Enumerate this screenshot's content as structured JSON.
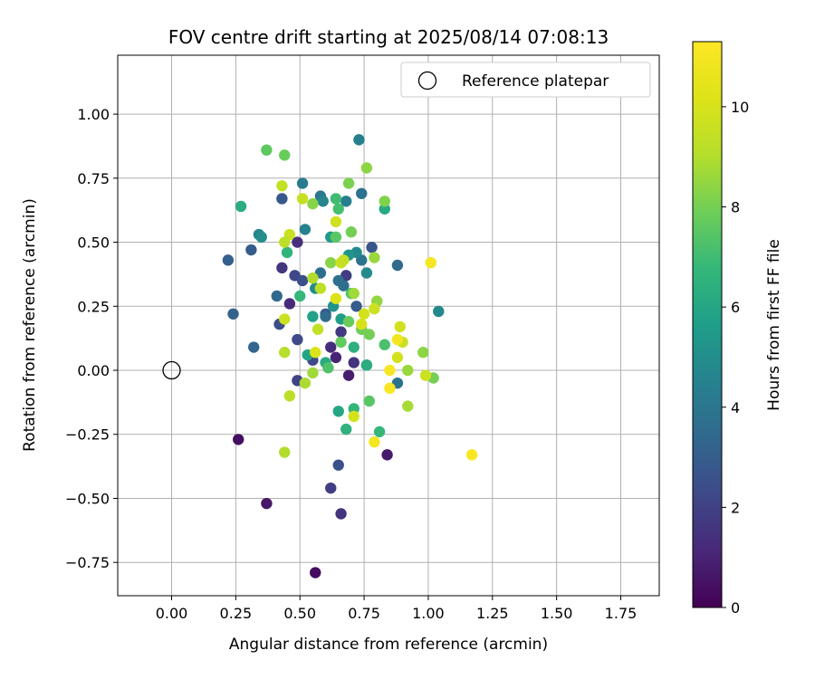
{
  "chart_data": {
    "type": "scatter",
    "title": "FOV centre drift starting at 2025/08/14 07:08:13",
    "xlabel": "Angular distance from reference (arcmin)",
    "ylabel": "Rotation from reference (arcmin)",
    "xlim": [
      -0.21,
      1.9
    ],
    "ylim": [
      -0.88,
      1.23
    ],
    "x_ticks": [
      "0.00",
      "0.25",
      "0.50",
      "0.75",
      "1.00",
      "1.25",
      "1.50",
      "1.75"
    ],
    "y_ticks": [
      "1.00",
      "0.75",
      "0.50",
      "0.25",
      "0.00",
      "−0.25",
      "−0.50",
      "−0.75"
    ],
    "grid": true,
    "legend": {
      "position": "top-right",
      "label": "Reference platepar"
    },
    "reference_point": {
      "x": 0.0,
      "y": 0.0
    },
    "colorbar": {
      "label": "Hours from first FF file",
      "range": [
        0,
        11.3
      ],
      "ticks": [
        "0",
        "2",
        "4",
        "6",
        "8",
        "10"
      ],
      "colormap": "viridis"
    },
    "points": [
      {
        "x": 0.56,
        "y": -0.79,
        "h": 0.3
      },
      {
        "x": 0.37,
        "y": -0.52,
        "h": 0.6
      },
      {
        "x": 0.26,
        "y": -0.27,
        "h": 0.4
      },
      {
        "x": 0.84,
        "y": -0.33,
        "h": 0.7
      },
      {
        "x": 0.69,
        "y": -0.02,
        "h": 0.8
      },
      {
        "x": 0.66,
        "y": -0.56,
        "h": 1.5
      },
      {
        "x": 0.62,
        "y": -0.46,
        "h": 1.9
      },
      {
        "x": 0.65,
        "y": -0.37,
        "h": 2.6
      },
      {
        "x": 0.49,
        "y": 0.5,
        "h": 1.4
      },
      {
        "x": 0.43,
        "y": 0.4,
        "h": 1.6
      },
      {
        "x": 0.46,
        "y": 0.26,
        "h": 1.2
      },
      {
        "x": 0.62,
        "y": 0.09,
        "h": 1.3
      },
      {
        "x": 0.64,
        "y": 0.05,
        "h": 1.0
      },
      {
        "x": 0.68,
        "y": 0.37,
        "h": 1.8
      },
      {
        "x": 0.71,
        "y": 0.03,
        "h": 1.5
      },
      {
        "x": 0.66,
        "y": 0.15,
        "h": 1.7
      },
      {
        "x": 0.49,
        "y": -0.04,
        "h": 2.1
      },
      {
        "x": 0.48,
        "y": 0.37,
        "h": 2.2
      },
      {
        "x": 0.51,
        "y": 0.35,
        "h": 2.5
      },
      {
        "x": 0.42,
        "y": 0.18,
        "h": 2.4
      },
      {
        "x": 0.49,
        "y": 0.12,
        "h": 2.3
      },
      {
        "x": 0.55,
        "y": 0.04,
        "h": 2.2
      },
      {
        "x": 0.6,
        "y": 0.22,
        "h": 2.8
      },
      {
        "x": 0.72,
        "y": 0.25,
        "h": 2.9
      },
      {
        "x": 0.78,
        "y": 0.48,
        "h": 2.7
      },
      {
        "x": 0.43,
        "y": 0.67,
        "h": 2.8
      },
      {
        "x": 0.31,
        "y": 0.47,
        "h": 3.0
      },
      {
        "x": 0.22,
        "y": 0.43,
        "h": 3.1
      },
      {
        "x": 0.24,
        "y": 0.22,
        "h": 3.2
      },
      {
        "x": 0.32,
        "y": 0.09,
        "h": 3.3
      },
      {
        "x": 0.41,
        "y": 0.29,
        "h": 3.4
      },
      {
        "x": 0.58,
        "y": 0.38,
        "h": 3.6
      },
      {
        "x": 0.6,
        "y": 0.21,
        "h": 3.5
      },
      {
        "x": 0.65,
        "y": 0.35,
        "h": 3.8
      },
      {
        "x": 0.67,
        "y": 0.33,
        "h": 3.7
      },
      {
        "x": 0.74,
        "y": 0.43,
        "h": 3.9
      },
      {
        "x": 0.74,
        "y": 0.69,
        "h": 3.8
      },
      {
        "x": 0.73,
        "y": 0.9,
        "h": 4.4
      },
      {
        "x": 0.88,
        "y": 0.41,
        "h": 3.5
      },
      {
        "x": 0.88,
        "y": -0.05,
        "h": 3.9
      },
      {
        "x": 0.58,
        "y": 0.68,
        "h": 4.1
      },
      {
        "x": 0.51,
        "y": 0.73,
        "h": 4.2
      },
      {
        "x": 0.59,
        "y": 0.66,
        "h": 4.6
      },
      {
        "x": 0.68,
        "y": 0.66,
        "h": 4.4
      },
      {
        "x": 0.72,
        "y": 0.46,
        "h": 4.8
      },
      {
        "x": 0.52,
        "y": 0.55,
        "h": 4.5
      },
      {
        "x": 0.34,
        "y": 0.53,
        "h": 4.7
      },
      {
        "x": 0.35,
        "y": 0.52,
        "h": 5.0
      },
      {
        "x": 0.56,
        "y": 0.32,
        "h": 4.9
      },
      {
        "x": 0.76,
        "y": 0.38,
        "h": 4.9
      },
      {
        "x": 0.76,
        "y": 0.02,
        "h": 4.3
      },
      {
        "x": 1.04,
        "y": 0.23,
        "h": 4.8
      },
      {
        "x": 0.62,
        "y": 0.52,
        "h": 5.4
      },
      {
        "x": 0.69,
        "y": 0.45,
        "h": 5.3
      },
      {
        "x": 0.63,
        "y": 0.25,
        "h": 5.2
      },
      {
        "x": 0.66,
        "y": 0.2,
        "h": 5.6
      },
      {
        "x": 0.55,
        "y": 0.21,
        "h": 5.8
      },
      {
        "x": 0.53,
        "y": 0.06,
        "h": 5.9
      },
      {
        "x": 0.6,
        "y": 0.03,
        "h": 6.2
      },
      {
        "x": 0.71,
        "y": 0.09,
        "h": 6.4
      },
      {
        "x": 0.65,
        "y": -0.16,
        "h": 6.0
      },
      {
        "x": 0.68,
        "y": -0.23,
        "h": 6.5
      },
      {
        "x": 0.71,
        "y": -0.15,
        "h": 6.7
      },
      {
        "x": 0.81,
        "y": -0.24,
        "h": 6.8
      },
      {
        "x": 0.76,
        "y": 0.02,
        "h": 6.3
      },
      {
        "x": 0.83,
        "y": 0.63,
        "h": 6.1
      },
      {
        "x": 0.27,
        "y": 0.64,
        "h": 6.3
      },
      {
        "x": 0.45,
        "y": 0.46,
        "h": 6.6
      },
      {
        "x": 0.5,
        "y": 0.29,
        "h": 6.8
      },
      {
        "x": 0.64,
        "y": 0.67,
        "h": 7.0
      },
      {
        "x": 0.65,
        "y": 0.63,
        "h": 7.1
      },
      {
        "x": 0.7,
        "y": 0.3,
        "h": 7.2
      },
      {
        "x": 0.83,
        "y": 0.1,
        "h": 7.2
      },
      {
        "x": 0.61,
        "y": 0.01,
        "h": 7.3
      },
      {
        "x": 0.77,
        "y": -0.12,
        "h": 7.5
      },
      {
        "x": 0.37,
        "y": 0.86,
        "h": 7.6
      },
      {
        "x": 0.44,
        "y": 0.84,
        "h": 7.8
      },
      {
        "x": 0.64,
        "y": 0.52,
        "h": 7.5
      },
      {
        "x": 0.69,
        "y": 0.19,
        "h": 7.8
      },
      {
        "x": 0.74,
        "y": 0.16,
        "h": 7.9
      },
      {
        "x": 0.77,
        "y": 0.14,
        "h": 8.0
      },
      {
        "x": 0.66,
        "y": 0.11,
        "h": 7.7
      },
      {
        "x": 0.55,
        "y": 0.65,
        "h": 8.3
      },
      {
        "x": 0.69,
        "y": 0.73,
        "h": 8.1
      },
      {
        "x": 0.76,
        "y": 0.79,
        "h": 8.4
      },
      {
        "x": 0.83,
        "y": 0.66,
        "h": 8.2
      },
      {
        "x": 0.7,
        "y": 0.54,
        "h": 8.0
      },
      {
        "x": 0.62,
        "y": 0.42,
        "h": 8.3
      },
      {
        "x": 0.79,
        "y": 0.44,
        "h": 8.6
      },
      {
        "x": 0.8,
        "y": 0.27,
        "h": 8.5
      },
      {
        "x": 0.71,
        "y": 0.3,
        "h": 8.7
      },
      {
        "x": 0.98,
        "y": 0.07,
        "h": 8.4
      },
      {
        "x": 0.92,
        "y": 0.0,
        "h": 8.6
      },
      {
        "x": 0.92,
        "y": -0.14,
        "h": 8.8
      },
      {
        "x": 1.02,
        "y": -0.03,
        "h": 8.0
      },
      {
        "x": 0.55,
        "y": -0.01,
        "h": 8.7
      },
      {
        "x": 0.52,
        "y": -0.05,
        "h": 8.9
      },
      {
        "x": 0.46,
        "y": -0.1,
        "h": 9.2
      },
      {
        "x": 0.44,
        "y": -0.32,
        "h": 9.0
      },
      {
        "x": 0.44,
        "y": 0.07,
        "h": 9.1
      },
      {
        "x": 0.58,
        "y": 0.32,
        "h": 9.3
      },
      {
        "x": 0.55,
        "y": 0.36,
        "h": 9.0
      },
      {
        "x": 0.43,
        "y": 0.72,
        "h": 9.4
      },
      {
        "x": 0.51,
        "y": 0.67,
        "h": 9.5
      },
      {
        "x": 0.46,
        "y": 0.53,
        "h": 9.6
      },
      {
        "x": 0.44,
        "y": 0.5,
        "h": 9.3
      },
      {
        "x": 0.44,
        "y": 0.2,
        "h": 9.7
      },
      {
        "x": 0.57,
        "y": 0.16,
        "h": 9.4
      },
      {
        "x": 0.66,
        "y": 0.42,
        "h": 9.6
      },
      {
        "x": 0.64,
        "y": 0.58,
        "h": 9.8
      },
      {
        "x": 0.67,
        "y": 0.43,
        "h": 9.5
      },
      {
        "x": 0.79,
        "y": 0.24,
        "h": 9.7
      },
      {
        "x": 0.75,
        "y": 0.22,
        "h": 9.9
      },
      {
        "x": 0.74,
        "y": 0.18,
        "h": 10.0
      },
      {
        "x": 0.89,
        "y": 0.17,
        "h": 9.8
      },
      {
        "x": 0.9,
        "y": 0.11,
        "h": 9.6
      },
      {
        "x": 0.88,
        "y": 0.05,
        "h": 9.9
      },
      {
        "x": 0.99,
        "y": -0.02,
        "h": 9.7
      },
      {
        "x": 0.71,
        "y": -0.18,
        "h": 9.9
      },
      {
        "x": 0.56,
        "y": 0.07,
        "h": 10.1
      },
      {
        "x": 0.64,
        "y": 0.28,
        "h": 10.2
      },
      {
        "x": 1.01,
        "y": 0.42,
        "h": 11.0
      },
      {
        "x": 0.88,
        "y": 0.12,
        "h": 10.9
      },
      {
        "x": 0.85,
        "y": 0.0,
        "h": 11.1
      },
      {
        "x": 0.85,
        "y": -0.07,
        "h": 11.2
      },
      {
        "x": 0.79,
        "y": -0.28,
        "h": 11.0
      },
      {
        "x": 1.17,
        "y": -0.33,
        "h": 11.2
      }
    ]
  }
}
